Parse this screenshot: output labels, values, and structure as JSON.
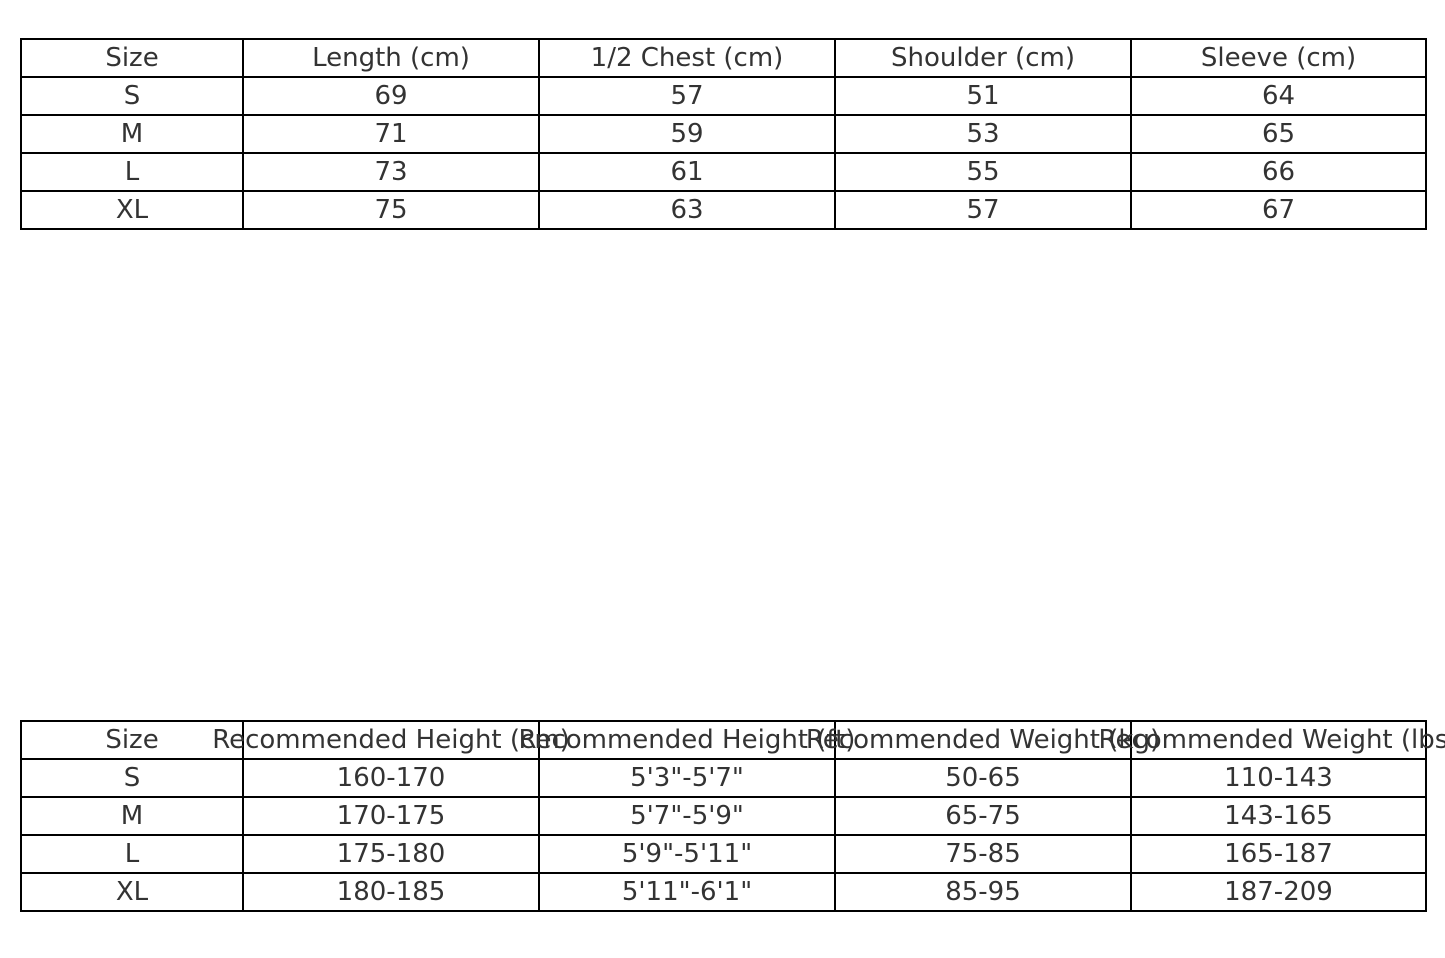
{
  "measurements_table": {
    "headers": [
      "Size",
      "Length (cm)",
      "1/2 Chest (cm)",
      "Shoulder (cm)",
      "Sleeve (cm)"
    ],
    "rows": [
      [
        "S",
        "69",
        "57",
        "51",
        "64"
      ],
      [
        "M",
        "71",
        "59",
        "53",
        "65"
      ],
      [
        "L",
        "73",
        "61",
        "55",
        "66"
      ],
      [
        "XL",
        "75",
        "63",
        "57",
        "67"
      ]
    ]
  },
  "recommendation_table": {
    "headers": [
      "Size",
      "Recommended Height (cm)",
      "Recommended Height (ft)",
      "Recommended Weight (kg)",
      "Recommended Weight (lbs)"
    ],
    "rows": [
      [
        "S",
        "160-170",
        "5'3\"-5'7\"",
        "50-65",
        "110-143"
      ],
      [
        "M",
        "170-175",
        "5'7\"-5'9\"",
        "65-75",
        "143-165"
      ],
      [
        "L",
        "175-180",
        "5'9\"-5'11\"",
        "75-85",
        "165-187"
      ],
      [
        "XL",
        "180-185",
        "5'11\"-6'1\"",
        "85-95",
        "187-209"
      ]
    ]
  }
}
